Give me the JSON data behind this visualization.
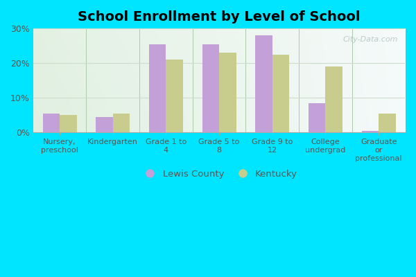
{
  "title": "School Enrollment by Level of School",
  "categories": [
    "Nursery,\npreschool",
    "Kindergarten",
    "Grade 1 to\n4",
    "Grade 5 to\n8",
    "Grade 9 to\n12",
    "College\nundergrad",
    "Graduate\nor\nprofessional"
  ],
  "lewis_county": [
    5.5,
    4.5,
    25.5,
    25.5,
    28.0,
    8.5,
    0.5
  ],
  "kentucky": [
    5.0,
    5.5,
    21.0,
    23.0,
    22.5,
    19.0,
    5.5
  ],
  "lewis_color": "#c4a0d8",
  "kentucky_color": "#c8cc8c",
  "background_outer": "#00e5ff",
  "ylim": [
    0,
    30
  ],
  "yticks": [
    0,
    10,
    20,
    30
  ],
  "ytick_labels": [
    "0%",
    "10%",
    "20%",
    "30%"
  ],
  "title_fontsize": 14,
  "legend_label_lewis": "Lewis County",
  "legend_label_kentucky": "Kentucky",
  "bar_width": 0.32,
  "separator_color": "#aaccaa",
  "grid_color": "#ccddcc",
  "watermark_text": "City-Data.com"
}
